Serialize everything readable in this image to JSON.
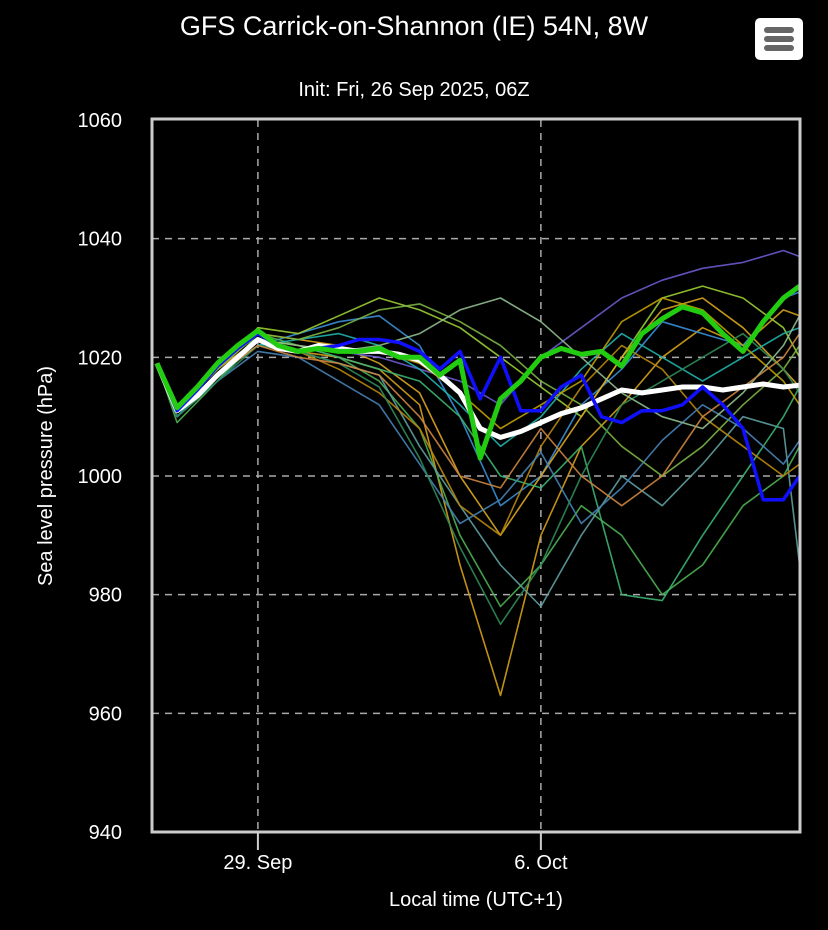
{
  "chart_data": {
    "type": "line",
    "title": "GFS Carrick-on-Shannon (IE) 54N, 8W",
    "subtitle": "Init: Fri, 26 Sep 2025, 06Z",
    "xlabel": "Local time (UTC+1)",
    "ylabel": "Sea level pressure (hPa)",
    "x_units": "days since 26 Sep 2025 00:00 local",
    "xlim": [
      0.38,
      16.41
    ],
    "ylim": [
      940,
      1060
    ],
    "grid": true,
    "x_ticks": [
      {
        "value": 3,
        "label": "29. Sep"
      },
      {
        "value": 10,
        "label": "6. Oct"
      }
    ],
    "y_ticks": [
      {
        "value": 940,
        "label": "940"
      },
      {
        "value": 960,
        "label": "960"
      },
      {
        "value": 980,
        "label": "980"
      },
      {
        "value": 1000,
        "label": "1000"
      },
      {
        "value": 1020,
        "label": "1020"
      },
      {
        "value": 1040,
        "label": "1040"
      },
      {
        "value": 1060,
        "label": "1060"
      }
    ],
    "main_x": [
      0.5,
      1,
      1.5,
      2,
      2.5,
      3,
      3.5,
      4,
      4.5,
      5,
      5.5,
      6,
      6.5,
      7,
      7.5,
      8,
      8.5,
      9,
      9.5,
      10,
      10.5,
      11,
      11.5,
      12,
      12.5,
      13,
      13.5,
      14,
      14.5,
      15,
      15.5,
      16,
      16.4
    ],
    "main_series": [
      {
        "name": "mean",
        "color": "#ffffff",
        "values": [
          1019,
          1011,
          1013.5,
          1017,
          1020,
          1023,
          1021.5,
          1021,
          1022,
          1021.5,
          1021,
          1021,
          1020.5,
          1019.5,
          1017,
          1014,
          1008,
          1006.5,
          1007.5,
          1009,
          1010.5,
          1011.5,
          1013,
          1014.5,
          1014,
          1014.5,
          1015,
          1015,
          1014.5,
          1015,
          1015.5,
          1015,
          1015.3
        ]
      },
      {
        "name": "blue-run",
        "color": "#1010ff",
        "values": [
          1019,
          1011,
          1014.5,
          1018.5,
          1021.5,
          1024,
          1022,
          1021,
          1021.5,
          1022,
          1023,
          1023,
          1022.5,
          1021,
          1018,
          1021,
          1013,
          1020,
          1011,
          1011,
          1015,
          1017,
          1010,
          1009,
          1011,
          1011,
          1012,
          1015,
          1012,
          1008,
          996,
          996,
          1000
        ]
      },
      {
        "name": "green-run",
        "color": "#22cc11",
        "values": [
          1019,
          1011.5,
          1015,
          1019,
          1022,
          1024.5,
          1022,
          1021,
          1021.5,
          1021,
          1021,
          1021.5,
          1020,
          1020,
          1017,
          1019.5,
          1003,
          1013,
          1016,
          1020,
          1021.5,
          1020.5,
          1021,
          1018.5,
          1024,
          1026.5,
          1028.5,
          1027.5,
          1024,
          1021,
          1026,
          1030,
          1032
        ]
      }
    ],
    "member_x": [
      0.5,
      1,
      2,
      3,
      4,
      5,
      6,
      7,
      8,
      9,
      10,
      11,
      12,
      13,
      14,
      15,
      16,
      16.4
    ],
    "members": [
      {
        "color": "#d4a017",
        "values": [
          1019,
          1011,
          1018,
          1023,
          1021,
          1020,
          1018,
          1012,
          985,
          963,
          990,
          1005,
          1012,
          1020,
          1025,
          1022,
          1028,
          1027
        ]
      },
      {
        "color": "#3a8fd6",
        "values": [
          1019,
          1010,
          1017,
          1022,
          1024,
          1026,
          1027,
          1022,
          1010,
          995,
          1000,
          1012,
          1018,
          1026,
          1024,
          1022,
          1030,
          1031
        ]
      },
      {
        "color": "#4caf50",
        "values": [
          1019,
          1009,
          1016,
          1024,
          1022,
          1020,
          1016,
          1008,
          990,
          978,
          985,
          995,
          990,
          980,
          985,
          995,
          1000,
          1005
        ]
      },
      {
        "color": "#9acd32",
        "values": [
          1019,
          1012,
          1018,
          1025,
          1024,
          1027,
          1030,
          1028,
          1025,
          1020,
          1015,
          1010,
          1020,
          1030,
          1032,
          1030,
          1025,
          1020
        ]
      },
      {
        "color": "#5f9ea0",
        "values": [
          1019,
          1010,
          1017,
          1022,
          1021,
          1019,
          1017,
          1005,
          995,
          985,
          978,
          990,
          1000,
          995,
          1002,
          1010,
          1008,
          985
        ]
      },
      {
        "color": "#daa520",
        "values": [
          1019,
          1011,
          1018,
          1024,
          1023,
          1022,
          1019,
          1014,
          1000,
          990,
          1000,
          1010,
          1020,
          1028,
          1030,
          1025,
          1018,
          1015
        ]
      },
      {
        "color": "#6a5acd",
        "values": [
          1019,
          1011,
          1017,
          1023,
          1022,
          1021,
          1020,
          1018,
          1016,
          1012,
          1020,
          1025,
          1030,
          1033,
          1035,
          1036,
          1038,
          1037
        ]
      },
      {
        "color": "#3cb371",
        "values": [
          1019,
          1010,
          1016,
          1023,
          1022,
          1020,
          1018,
          1016,
          1010,
          1000,
          998,
          1005,
          980,
          979,
          990,
          1000,
          1010,
          1015
        ]
      },
      {
        "color": "#b8860b",
        "values": [
          1019,
          1011,
          1017,
          1023,
          1021,
          1018,
          1014,
          1008,
          995,
          990,
          1005,
          1015,
          1022,
          1018,
          1010,
          1005,
          1000,
          1002
        ]
      },
      {
        "color": "#20b2aa",
        "values": [
          1019,
          1010,
          1017,
          1022,
          1023,
          1024,
          1022,
          1018,
          1012,
          1005,
          1010,
          1018,
          1024,
          1020,
          1016,
          1020,
          1024,
          1025
        ]
      },
      {
        "color": "#7cb342",
        "values": [
          1019,
          1011,
          1018,
          1024,
          1023,
          1025,
          1028,
          1029,
          1026,
          1022,
          1016,
          1012,
          1005,
          1000,
          1005,
          1012,
          1018,
          1022
        ]
      },
      {
        "color": "#4682b4",
        "values": [
          1019,
          1010,
          1016,
          1021,
          1020,
          1016,
          1012,
          1002,
          992,
          996,
          1004,
          992,
          998,
          1006,
          1012,
          1008,
          1002,
          1006
        ]
      },
      {
        "color": "#c0a000",
        "values": [
          1019,
          1011,
          1017,
          1023,
          1022,
          1021,
          1021,
          1019,
          1014,
          1008,
          1012,
          1016,
          1026,
          1030,
          1028,
          1022,
          1016,
          1012
        ]
      },
      {
        "color": "#2e8b57",
        "values": [
          1019,
          1010,
          1016,
          1022,
          1021,
          1019,
          1015,
          1003,
          988,
          975,
          985,
          1000,
          1012,
          1016,
          1020,
          1024,
          1018,
          1014
        ]
      },
      {
        "color": "#8fbc8f",
        "values": [
          1019,
          1011,
          1017,
          1023,
          1022,
          1021,
          1022,
          1024,
          1028,
          1030,
          1026,
          1020,
          1014,
          1010,
          1008,
          1014,
          1022,
          1027
        ]
      },
      {
        "color": "#cd853f",
        "values": [
          1019,
          1011,
          1017,
          1022,
          1020,
          1019,
          1017,
          1010,
          1000,
          998,
          1008,
          1000,
          995,
          1000,
          1010,
          1015,
          1020,
          1024
        ]
      }
    ]
  }
}
